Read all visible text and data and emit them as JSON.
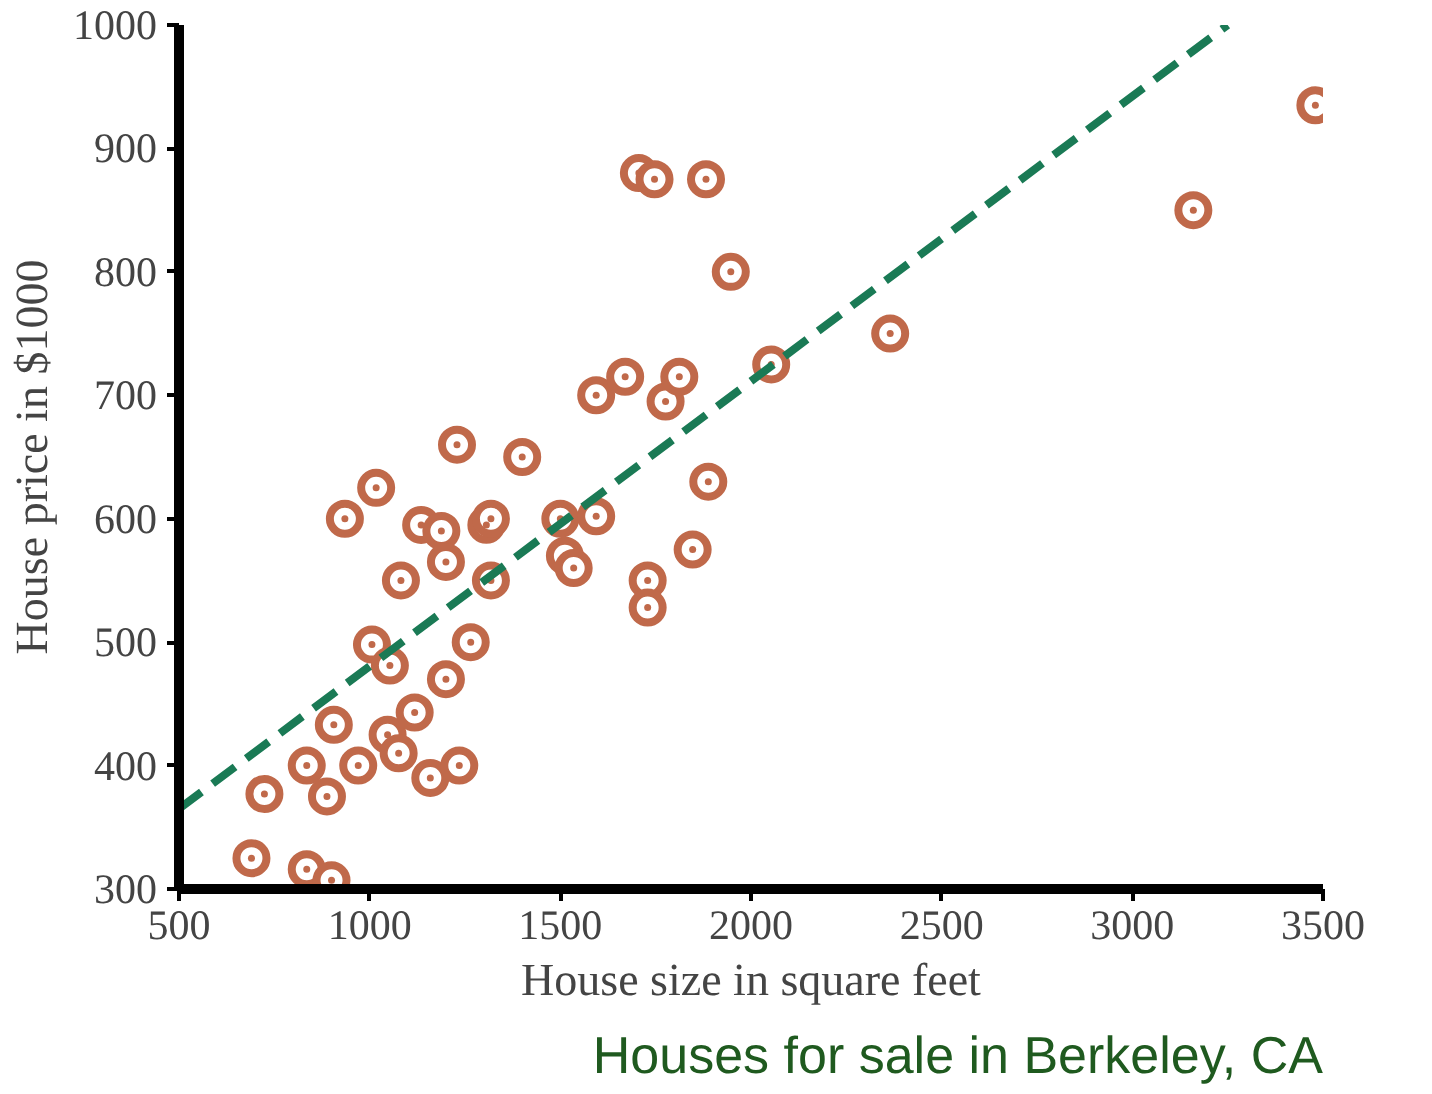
{
  "chart_data": {
    "type": "scatter",
    "title": "Houses for sale in Berkeley, CA",
    "xlabel": "House size in square feet",
    "ylabel": "House price in $1000",
    "xlim": [
      500,
      3500
    ],
    "ylim": [
      300,
      1000
    ],
    "xticks": [
      500,
      1000,
      1500,
      2000,
      2500,
      3000,
      3500
    ],
    "yticks": [
      300,
      400,
      500,
      600,
      700,
      800,
      900,
      1000
    ],
    "grid": false,
    "marker": "circle",
    "series": [
      {
        "color": "#c0694a",
        "x": [
          690,
          724,
          835,
          900,
          835,
          888,
          906,
          970,
          935,
          1017,
          1006,
          1053,
          1082,
          1047,
          1076,
          1118,
          1135,
          1188,
          1200,
          1200,
          1159,
          1235,
          1229,
          1265,
          1306,
          1318,
          1318,
          1400,
          1500,
          1512,
          1535,
          1594,
          1594,
          1670,
          1706,
          1747,
          1776,
          1812,
          1882,
          1947,
          1729,
          1729,
          1847,
          1888,
          2053,
          2365,
          3160,
          3480
        ],
        "values": [
          325,
          377,
          316,
          307,
          400,
          375,
          433,
          400,
          600,
          625,
          498,
          481,
          550,
          425,
          410,
          443,
          595,
          590,
          565,
          470,
          390,
          400,
          660,
          500,
          595,
          600,
          550,
          650,
          600,
          570,
          560,
          602,
          700,
          715,
          880,
          875,
          695,
          715,
          875,
          800,
          550,
          528,
          575,
          630,
          725,
          750,
          850,
          935
        ]
      },
      {
        "type": "line",
        "color": "#1a7a55",
        "line_style": "dashed",
        "marker": "none",
        "x": [
          500,
          3250
        ],
        "values": [
          365,
          1000
        ]
      }
    ]
  }
}
